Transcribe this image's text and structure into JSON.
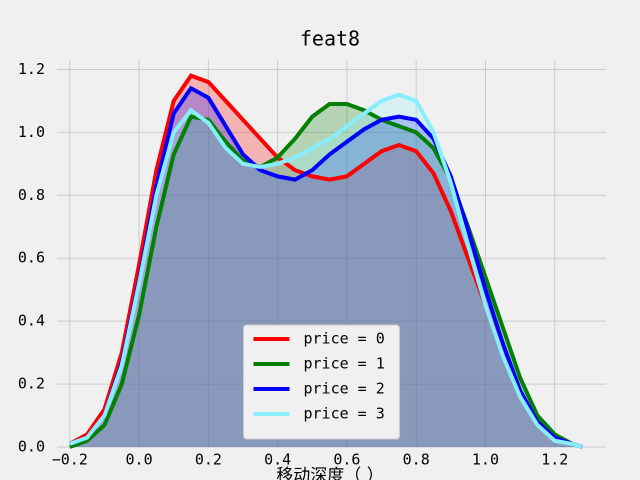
{
  "chart_data": {
    "type": "line",
    "title": "feat8",
    "x_label": "移动深度（ ）",
    "x": [
      -0.2,
      -0.15,
      -0.1,
      -0.05,
      0,
      0.05,
      0.1,
      0.15,
      0.2,
      0.25,
      0.3,
      0.35,
      0.4,
      0.45,
      0.5,
      0.55,
      0.6,
      0.65,
      0.7,
      0.75,
      0.8,
      0.85,
      0.9,
      0.95,
      1.0,
      1.05,
      1.1,
      1.15,
      1.2,
      1.25,
      1.28
    ],
    "series": [
      {
        "name": "price = 0",
        "color": "#ff0000",
        "values": [
          0.01,
          0.04,
          0.12,
          0.3,
          0.58,
          0.88,
          1.1,
          1.18,
          1.16,
          1.1,
          1.04,
          0.98,
          0.92,
          0.88,
          0.86,
          0.85,
          0.86,
          0.9,
          0.94,
          0.96,
          0.94,
          0.87,
          0.75,
          0.6,
          0.45,
          0.3,
          0.17,
          0.08,
          0.03,
          0.01,
          0
        ]
      },
      {
        "name": "price = 1",
        "color": "#008000",
        "values": [
          0,
          0.02,
          0.07,
          0.2,
          0.42,
          0.7,
          0.93,
          1.05,
          1.04,
          0.97,
          0.91,
          0.89,
          0.92,
          0.98,
          1.05,
          1.09,
          1.09,
          1.07,
          1.04,
          1.02,
          1.0,
          0.95,
          0.85,
          0.7,
          0.54,
          0.38,
          0.22,
          0.1,
          0.04,
          0.01,
          0
        ]
      },
      {
        "name": "price = 2",
        "color": "#0000ff",
        "values": [
          0.01,
          0.03,
          0.1,
          0.27,
          0.53,
          0.83,
          1.06,
          1.14,
          1.11,
          1.02,
          0.93,
          0.88,
          0.86,
          0.85,
          0.88,
          0.93,
          0.97,
          1.01,
          1.04,
          1.05,
          1.04,
          0.98,
          0.86,
          0.69,
          0.5,
          0.33,
          0.18,
          0.08,
          0.03,
          0.01,
          0
        ]
      },
      {
        "name": "price = 3",
        "color": "#88eeff",
        "values": [
          0.01,
          0.03,
          0.1,
          0.26,
          0.52,
          0.8,
          1.0,
          1.07,
          1.03,
          0.95,
          0.9,
          0.89,
          0.9,
          0.92,
          0.95,
          0.98,
          1.02,
          1.06,
          1.1,
          1.12,
          1.1,
          1.0,
          0.84,
          0.64,
          0.45,
          0.29,
          0.16,
          0.07,
          0.02,
          0.01,
          0
        ]
      }
    ],
    "xlim": [
      -0.237,
      1.348
    ],
    "ylim": [
      0,
      1.23
    ],
    "xticks": [
      {
        "value": -0.2,
        "label": "−0.2"
      },
      {
        "value": 0.0,
        "label": "0.0"
      },
      0.2,
      0.4,
      0.6,
      0.8,
      {
        "value": 1.0,
        "label": "1.0"
      },
      1.2
    ],
    "yticks": [
      {
        "value": 0.0,
        "label": "0.0"
      },
      0.2,
      0.4,
      0.6,
      0.8,
      {
        "value": 1.0,
        "label": "1.0"
      },
      1.2
    ],
    "grid": true,
    "fill_alpha": 0.25,
    "legend": "lower center"
  }
}
